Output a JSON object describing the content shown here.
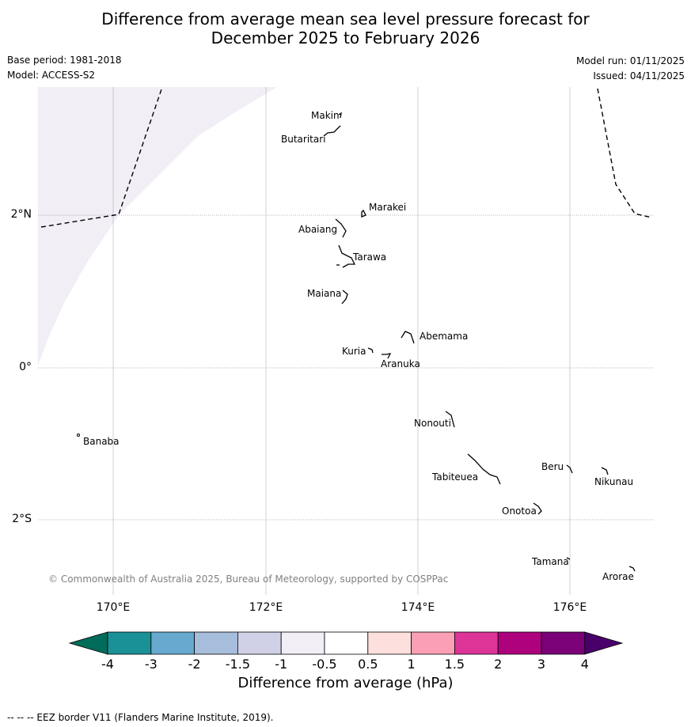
{
  "title": {
    "line1": "Difference from average mean sea level pressure forecast for",
    "line2": "December 2025 to February 2026"
  },
  "meta": {
    "base_period": "Base period: 1981-2018",
    "model": "Model: ACCESS-S2",
    "model_run": "Model run: 01/11/2025",
    "issued": "Issued: 04/11/2025"
  },
  "axes": {
    "x_ticks": [
      "170°E",
      "172°E",
      "174°E",
      "176°E"
    ],
    "y_ticks": [
      "2°N",
      "0°",
      "2°S"
    ]
  },
  "places": {
    "makin": "Makin",
    "butaritari": "Butaritari",
    "marakei": "Marakei",
    "abaiang": "Abaiang",
    "tarawa": "Tarawa",
    "maiana": "Maiana",
    "abemama": "Abemama",
    "kuria": "Kuria",
    "aranuka": "Aranuka",
    "nonouti": "Nonouti",
    "banaba": "Banaba",
    "beru": "Beru",
    "nikunau": "Nikunau",
    "tabiteuea": "Tabiteuea",
    "onotoa": "Onotoa",
    "tamana": "Tamana",
    "arorae": "Arorae"
  },
  "copyright": "© Commonwealth of Australia 2025, Bureau of Meteorology, supported by COSPPac",
  "colorbar": {
    "ticks": [
      "-4",
      "-3",
      "-2",
      "-1.5",
      "-1",
      "-0.5",
      "0.5",
      "1",
      "1.5",
      "2",
      "3",
      "4"
    ],
    "colors": [
      "#1a9097",
      "#67a9cf",
      "#a6bddb",
      "#d0d1e6",
      "#f1eef6",
      "#ffffff",
      "#fde0dd",
      "#fa9fb5",
      "#dd3497",
      "#ae017e",
      "#7a0177"
    ],
    "under_color": "#016c59",
    "over_color": "#49006a",
    "label": "Difference from average (hPa)"
  },
  "eez_note": "--  --  -- EEZ border V11 (Flanders Marine Institute, 2019)."
}
